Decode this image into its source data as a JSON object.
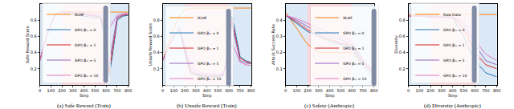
{
  "chart_data": [
    {
      "type": "line",
      "title": "(a) Safe Reward (Train)",
      "x_label": "Step",
      "y_label": "Safe Reward Score",
      "x": [
        0,
        50,
        100,
        150,
        200,
        250,
        300,
        350,
        400,
        450,
        500,
        550,
        600,
        625,
        650,
        700,
        750,
        800
      ],
      "xlim": [
        0,
        800
      ],
      "xticks": [
        0,
        100,
        200,
        300,
        400,
        500,
        600,
        700,
        800
      ],
      "ylim": [
        0,
        1
      ],
      "yticks": [
        0.2,
        0.4,
        0.6,
        0.8
      ],
      "grid": false,
      "legend": "lower left",
      "shaded_regions": [
        {
          "x0": 0,
          "x1": 200,
          "color": "#dbe8f5"
        },
        {
          "x0": 200,
          "x1": 600,
          "color": "#f9d5dc"
        },
        {
          "x0": 600,
          "x1": 800,
          "color": "#dbe8f5"
        }
      ],
      "series": [
        {
          "name": "RLHF",
          "color": "#ff7f0e",
          "values": [
            0.3,
            0.55,
            0.75,
            0.88,
            0.9,
            0.91,
            0.9,
            0.91,
            0.9,
            0.91,
            0.9,
            0.9,
            0.9,
            0.9,
            0.9,
            0.9,
            0.9,
            0.9
          ]
        },
        {
          "name": "GPO βₘ = 0",
          "color": "#1f77b4",
          "values": [
            0.3,
            0.55,
            0.75,
            0.88,
            0.9,
            0.88,
            0.87,
            0.86,
            0.85,
            0.84,
            0.83,
            0.82,
            0.5,
            0.1,
            0.3,
            0.8,
            0.85,
            0.86
          ]
        },
        {
          "name": "GPO βₘ = 1",
          "color": "#d62728",
          "values": [
            0.3,
            0.55,
            0.75,
            0.88,
            0.9,
            0.9,
            0.89,
            0.88,
            0.87,
            0.86,
            0.85,
            0.84,
            0.6,
            0.15,
            0.35,
            0.82,
            0.86,
            0.87
          ]
        },
        {
          "name": "GPO βₘ = 5",
          "color": "#9467bd",
          "values": [
            0.3,
            0.55,
            0.75,
            0.88,
            0.9,
            0.9,
            0.9,
            0.89,
            0.88,
            0.87,
            0.86,
            0.85,
            0.7,
            0.2,
            0.45,
            0.84,
            0.87,
            0.88
          ]
        },
        {
          "name": "GPO βₘ = 10",
          "color": "#e377c2",
          "values": [
            0.3,
            0.55,
            0.75,
            0.88,
            0.9,
            0.9,
            0.9,
            0.9,
            0.89,
            0.89,
            0.88,
            0.88,
            0.8,
            0.7,
            0.75,
            0.86,
            0.88,
            0.88
          ]
        }
      ]
    },
    {
      "type": "line",
      "title": "(b) Unsafe Reward (Train)",
      "x_label": "Step",
      "y_label": "Unsafe Reward Score",
      "x": [
        0,
        50,
        100,
        150,
        200,
        250,
        300,
        350,
        400,
        450,
        500,
        550,
        600,
        625,
        650,
        700,
        750,
        800
      ],
      "xlim": [
        0,
        800
      ],
      "xticks": [
        0,
        100,
        200,
        300,
        400,
        500,
        600,
        700,
        800
      ],
      "ylim": [
        0,
        1
      ],
      "yticks": [
        0.2,
        0.4,
        0.6,
        0.8
      ],
      "grid": false,
      "legend": "upper left",
      "shaded_regions": [
        {
          "x0": 0,
          "x1": 200,
          "color": "#dbe8f5"
        },
        {
          "x0": 200,
          "x1": 600,
          "color": "#f9d5dc"
        },
        {
          "x0": 600,
          "x1": 800,
          "color": "#dbe8f5"
        }
      ],
      "series": [
        {
          "name": "RLHF",
          "color": "#ff7f0e",
          "values": [
            0.3,
            0.5,
            0.7,
            0.85,
            0.93,
            0.95,
            0.95,
            0.95,
            0.95,
            0.95,
            0.95,
            0.95,
            0.95,
            0.95,
            0.95,
            0.95,
            0.95,
            0.95
          ]
        },
        {
          "name": "GPO βₘ = 0",
          "color": "#1f77b4",
          "values": [
            0.3,
            0.45,
            0.6,
            0.7,
            0.4,
            0.15,
            0.12,
            0.1,
            0.1,
            0.1,
            0.1,
            0.12,
            0.5,
            0.85,
            0.7,
            0.35,
            0.3,
            0.28
          ]
        },
        {
          "name": "GPO βₘ = 1",
          "color": "#d62728",
          "values": [
            0.3,
            0.45,
            0.6,
            0.7,
            0.42,
            0.17,
            0.13,
            0.12,
            0.11,
            0.11,
            0.11,
            0.13,
            0.45,
            0.8,
            0.65,
            0.33,
            0.29,
            0.27
          ]
        },
        {
          "name": "GPO βₘ = 5",
          "color": "#9467bd",
          "values": [
            0.3,
            0.45,
            0.6,
            0.7,
            0.45,
            0.2,
            0.15,
            0.13,
            0.12,
            0.12,
            0.12,
            0.14,
            0.4,
            0.75,
            0.6,
            0.3,
            0.27,
            0.26
          ]
        },
        {
          "name": "GPO βₘ = 10",
          "color": "#e377c2",
          "values": [
            0.3,
            0.45,
            0.6,
            0.7,
            0.5,
            0.25,
            0.18,
            0.15,
            0.14,
            0.14,
            0.14,
            0.15,
            0.3,
            0.5,
            0.45,
            0.28,
            0.25,
            0.24
          ]
        }
      ]
    },
    {
      "type": "line",
      "title": "(c) Safety (Anthropic)",
      "x_label": "Step",
      "y_label": "Attack Success Rate",
      "x": [
        0,
        100,
        200,
        300,
        400,
        500,
        600,
        700,
        800
      ],
      "xlim": [
        0,
        800
      ],
      "xticks": [
        0,
        100,
        200,
        300,
        400,
        500,
        600,
        700,
        800
      ],
      "ylim": [
        0,
        0.5
      ],
      "yticks": [
        0.1,
        0.2,
        0.3,
        0.4
      ],
      "grid": false,
      "legend": "upper right",
      "shaded_regions": [
        {
          "x0": 0,
          "x1": 200,
          "color": "#dbe8f5"
        },
        {
          "x0": 200,
          "x1": 600,
          "color": "#f9d5dc"
        },
        {
          "x0": 600,
          "x1": 800,
          "color": "#dbe8f5"
        }
      ],
      "series": [
        {
          "name": "RLHF",
          "color": "#ff7f0e",
          "values": [
            0.45,
            0.35,
            0.25,
            0.2,
            0.2,
            0.2,
            0.2,
            0.12,
            0.08
          ]
        },
        {
          "name": "GPO βₘ = 0",
          "color": "#1f77b4",
          "values": [
            0.43,
            0.38,
            0.33,
            0.3,
            0.27,
            0.25,
            0.23,
            0.12,
            0.05
          ]
        },
        {
          "name": "GPO βₘ = 1",
          "color": "#d62728",
          "values": [
            0.43,
            0.39,
            0.34,
            0.31,
            0.28,
            0.26,
            0.24,
            0.14,
            0.07
          ]
        },
        {
          "name": "GPO βₘ = 5",
          "color": "#9467bd",
          "values": [
            0.43,
            0.4,
            0.36,
            0.33,
            0.3,
            0.28,
            0.25,
            0.15,
            0.08
          ]
        },
        {
          "name": "GPO βₘ = 10",
          "color": "#e377c2",
          "values": [
            0.43,
            0.41,
            0.38,
            0.35,
            0.32,
            0.3,
            0.27,
            0.16,
            0.09
          ]
        }
      ]
    },
    {
      "type": "line",
      "title": "(d) Diversity (Anthropic)",
      "x_label": "Step",
      "y_label": "Diversity",
      "x": [
        0,
        100,
        200,
        300,
        400,
        500,
        600,
        700,
        800
      ],
      "xlim": [
        0,
        800
      ],
      "xticks": [
        0,
        100,
        200,
        300,
        400,
        500,
        600,
        700,
        800
      ],
      "ylim": [
        0,
        1
      ],
      "yticks": [
        0.2,
        0.4,
        0.6,
        0.8
      ],
      "grid": false,
      "legend": "lower left",
      "shaded_regions": [
        {
          "x0": 0,
          "x1": 200,
          "color": "#dbe8f5"
        },
        {
          "x0": 200,
          "x1": 600,
          "color": "#f9d5dc"
        },
        {
          "x0": 600,
          "x1": 800,
          "color": "#dbe8f5"
        }
      ],
      "series": [
        {
          "name": "Raw Data",
          "color": "#ff7f0e",
          "values": [
            0.87,
            0.87,
            0.87,
            0.87,
            0.87,
            0.87,
            0.87,
            0.87,
            0.87
          ]
        },
        {
          "name": "GPO βₘ = 0",
          "color": "#1f77b4",
          "values": [
            0.85,
            0.85,
            0.84,
            0.84,
            0.83,
            0.6,
            0.3,
            0.15,
            0.1
          ]
        },
        {
          "name": "GPO βₘ = 1",
          "color": "#d62728",
          "values": [
            0.85,
            0.85,
            0.84,
            0.84,
            0.84,
            0.7,
            0.4,
            0.25,
            0.2
          ]
        },
        {
          "name": "GPO βₘ = 5",
          "color": "#9467bd",
          "values": [
            0.85,
            0.85,
            0.85,
            0.84,
            0.84,
            0.75,
            0.5,
            0.3,
            0.25
          ]
        },
        {
          "name": "GPO βₘ = 10",
          "color": "#e377c2",
          "values": [
            0.85,
            0.85,
            0.85,
            0.85,
            0.84,
            0.78,
            0.55,
            0.38,
            0.3
          ]
        }
      ]
    }
  ]
}
